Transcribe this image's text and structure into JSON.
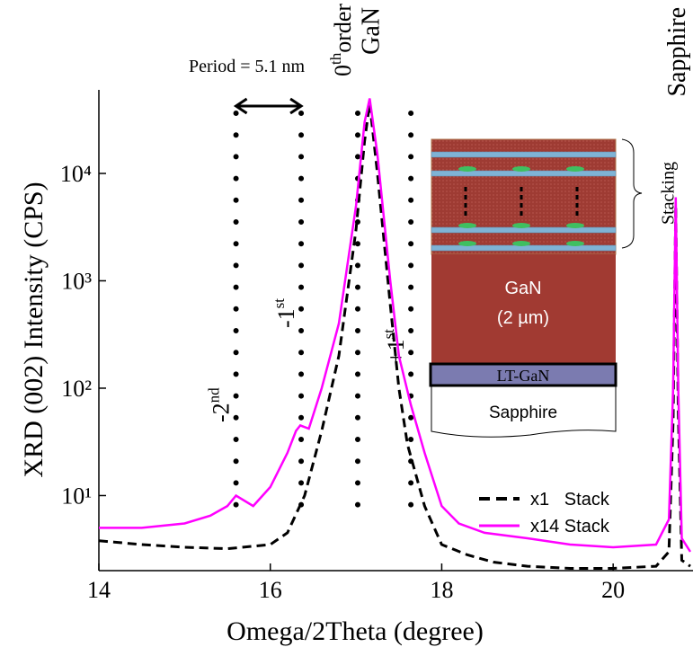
{
  "chart_data": {
    "type": "line",
    "x_label": "Omega/2Theta (degree)",
    "y_label": "XRD (002) Intensity (CPS)",
    "xlim": [
      14,
      20.9
    ],
    "xticks": [
      14,
      16,
      18,
      20
    ],
    "ylim": [
      2,
      60000
    ],
    "y_log": true,
    "yticks": [
      {
        "value": 10,
        "label": "10¹"
      },
      {
        "value": 100,
        "label": "10²"
      },
      {
        "value": 1000,
        "label": "10³"
      },
      {
        "value": 10000,
        "label": "10⁴"
      }
    ],
    "legend": "lower right",
    "series": [
      {
        "name": "x1   Stack",
        "color": "#000000",
        "dash": true,
        "x": [
          14,
          14.5,
          15,
          15.5,
          16,
          16.2,
          16.4,
          16.6,
          16.8,
          17.0,
          17.1,
          17.16,
          17.25,
          17.4,
          17.5,
          17.6,
          17.8,
          18.0,
          18.3,
          18.6,
          19.0,
          19.5,
          20.0,
          20.5,
          20.65,
          20.7,
          20.73,
          20.76,
          20.8,
          20.9
        ],
        "values": [
          3.8,
          3.5,
          3.3,
          3.2,
          3.5,
          4.5,
          10,
          40,
          200,
          3000,
          20000,
          45000,
          10000,
          600,
          100,
          30,
          8,
          3.5,
          2.8,
          2.4,
          2.2,
          2.1,
          2.1,
          2.2,
          3,
          50,
          5000,
          60,
          2.5,
          2.2
        ]
      },
      {
        "name": "x14 Stack",
        "color": "#ff00ff",
        "dash": false,
        "x": [
          14,
          14.5,
          15,
          15.3,
          15.5,
          15.6,
          15.8,
          16.0,
          16.2,
          16.3,
          16.35,
          16.45,
          16.6,
          16.8,
          17.0,
          17.1,
          17.16,
          17.25,
          17.4,
          17.5,
          17.64,
          17.8,
          18.0,
          18.2,
          18.5,
          19.0,
          19.5,
          20.0,
          20.5,
          20.65,
          20.7,
          20.73,
          20.76,
          20.8,
          20.9
        ],
        "values": [
          5,
          5,
          5.5,
          6.5,
          8,
          10,
          8,
          12,
          25,
          40,
          45,
          42,
          100,
          400,
          5000,
          30000,
          50000,
          15000,
          1000,
          200,
          70,
          25,
          8,
          5.5,
          4.5,
          4,
          3.5,
          3.3,
          3.5,
          6,
          100,
          6000,
          100,
          4,
          3
        ]
      }
    ],
    "period_label": "Period = 5.1 nm",
    "peak_labels": [
      {
        "text": "GaN",
        "x": 17.16
      },
      {
        "text": "Sapphire",
        "x": 20.73
      }
    ],
    "orders": [
      {
        "x": 15.6,
        "label": "-2",
        "sup": "nd"
      },
      {
        "x": 16.36,
        "label": "-1",
        "sup": "st"
      },
      {
        "x": 17.02,
        "label": "0",
        "sup": "th",
        "suffix": "order"
      },
      {
        "x": 17.64,
        "label": "+1",
        "sup": "st"
      }
    ],
    "inset": {
      "stacking": "Stacking",
      "gan": "GaN",
      "gan_thickness": "(2 µm)",
      "lt_gan": "LT-GaN",
      "sapphire": "Sapphire"
    }
  }
}
